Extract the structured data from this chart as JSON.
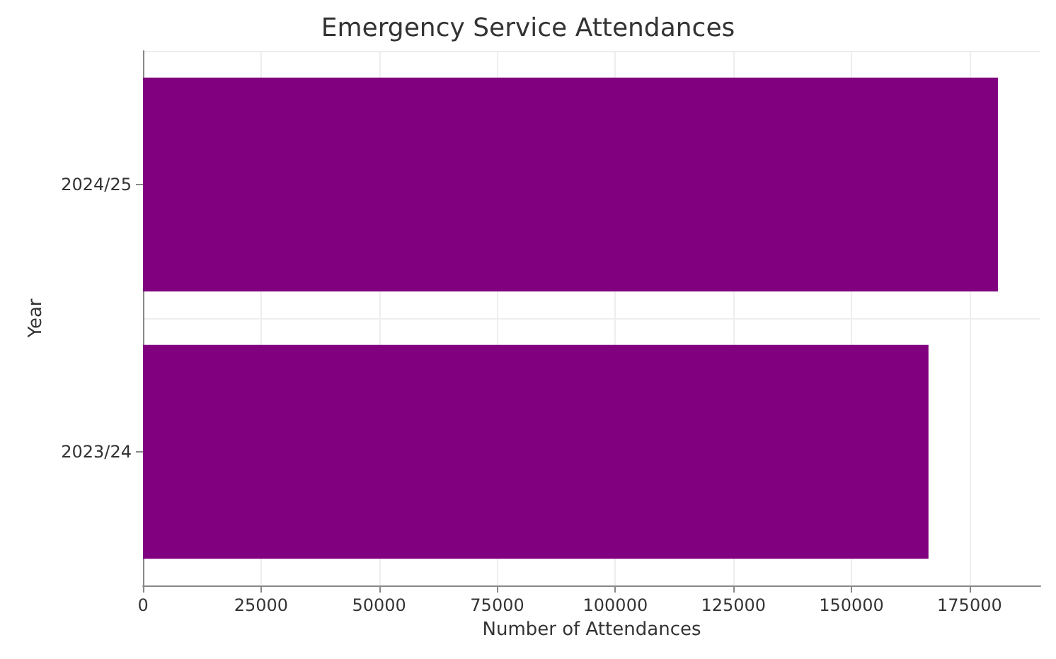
{
  "chart_data": {
    "type": "bar",
    "orientation": "horizontal",
    "title": "Emergency Service Attendances",
    "xlabel": "Number of Attendances",
    "ylabel": "Year",
    "categories": [
      "2024/25",
      "2023/24"
    ],
    "values": [
      181000,
      166300
    ],
    "color": "#800080",
    "xlim": [
      0,
      190000
    ],
    "xticks": [
      0,
      25000,
      50000,
      75000,
      100000,
      125000,
      150000,
      175000
    ],
    "grid": true
  }
}
